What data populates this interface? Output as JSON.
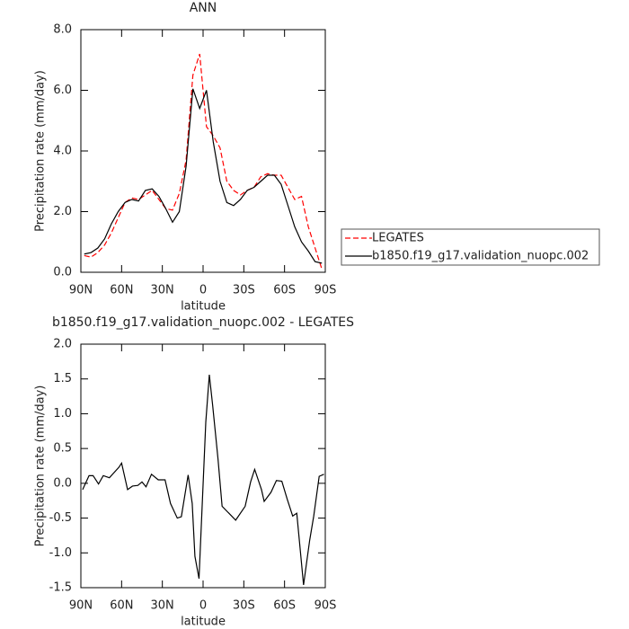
{
  "chart_data": [
    {
      "type": "line",
      "title": "ANN",
      "xlabel": "latitude",
      "ylabel": "Precipitation rate (mm/day)",
      "x": [
        87.5,
        82.5,
        77.5,
        72.5,
        67.5,
        62.5,
        57.5,
        52.5,
        47.5,
        42.5,
        37.5,
        32.5,
        27.5,
        22.5,
        17.5,
        12.5,
        7.5,
        2.5,
        -2.5,
        -7.5,
        -12.5,
        -17.5,
        -22.5,
        -27.5,
        -32.5,
        -37.5,
        -42.5,
        -47.5,
        -52.5,
        -57.5,
        -62.5,
        -67.5,
        -72.5,
        -77.5,
        -82.5,
        -87.5
      ],
      "series": [
        {
          "name": "LEGATES",
          "color": "#ff0000",
          "linestyle": "dashed",
          "values": [
            0.55,
            0.5,
            0.65,
            0.9,
            1.3,
            1.8,
            2.3,
            2.45,
            2.4,
            2.55,
            2.7,
            2.4,
            2.1,
            2.05,
            2.6,
            3.7,
            6.5,
            7.2,
            4.8,
            4.5,
            4.1,
            3.0,
            2.7,
            2.55,
            2.7,
            2.8,
            3.15,
            3.25,
            3.2,
            3.2,
            2.8,
            2.4,
            2.5,
            1.5,
            0.8,
            0.1
          ]
        },
        {
          "name": "b1850.f19_g17.validation_nuopc.002",
          "color": "#000000",
          "linestyle": "solid",
          "values": [
            0.6,
            0.65,
            0.8,
            1.1,
            1.6,
            2.0,
            2.3,
            2.4,
            2.35,
            2.7,
            2.75,
            2.5,
            2.1,
            1.65,
            2.0,
            3.5,
            6.05,
            5.4,
            6.0,
            4.3,
            3.0,
            2.3,
            2.2,
            2.4,
            2.7,
            2.8,
            3.0,
            3.2,
            3.2,
            2.9,
            2.2,
            1.5,
            1.0,
            0.7,
            0.35,
            0.3
          ]
        }
      ],
      "xlim": [
        90,
        -90
      ],
      "xticks": [
        {
          "value": 90,
          "label": "90N"
        },
        {
          "value": 60,
          "label": "60N"
        },
        {
          "value": 30,
          "label": "30N"
        },
        0,
        {
          "value": -30,
          "label": "30S"
        },
        {
          "value": -60,
          "label": "60S"
        },
        {
          "value": -90,
          "label": "90S"
        }
      ],
      "ylim": [
        0,
        8
      ],
      "yticks": [
        {
          "value": 0,
          "label": "0.0"
        },
        {
          "value": 2,
          "label": "2.0"
        },
        {
          "value": 4,
          "label": "4.0"
        },
        {
          "value": 6,
          "label": "6.0"
        },
        {
          "value": 8,
          "label": "8.0"
        }
      ],
      "legend": "right"
    },
    {
      "type": "line",
      "title": "b1850.f19_g17.validation_nuopc.002 - LEGATES",
      "xlabel": "latitude",
      "ylabel": "Precipitation rate (mm/day)",
      "x": [
        88.7,
        84,
        81,
        77,
        73.5,
        69,
        62,
        60,
        55.6,
        52,
        48,
        45,
        42,
        38,
        33,
        28,
        24,
        19,
        16,
        11,
        8,
        6,
        3,
        -2,
        -4.6,
        -7,
        -11,
        -14,
        -24,
        -31,
        -35,
        -38,
        -43,
        -45,
        -50,
        -54,
        -58,
        -62,
        -66,
        -69,
        -74,
        -78.5,
        -81.5,
        -85.5,
        -89
      ],
      "series": [
        {
          "color": "#000000",
          "linestyle": "solid",
          "values": [
            -0.09,
            0.11,
            0.11,
            -0.01,
            0.11,
            0.08,
            0.23,
            0.29,
            -0.09,
            -0.04,
            -0.03,
            0.02,
            -0.05,
            0.13,
            0.05,
            0.05,
            -0.29,
            -0.5,
            -0.48,
            0.12,
            -0.29,
            -1.05,
            -1.37,
            0.88,
            1.56,
            1.13,
            0.35,
            -0.33,
            -0.53,
            -0.33,
            0.02,
            0.2,
            -0.09,
            -0.26,
            -0.13,
            0.04,
            0.03,
            -0.23,
            -0.47,
            -0.43,
            -1.46,
            -0.82,
            -0.47,
            0.1,
            0.13
          ]
        }
      ],
      "xlim": [
        90,
        -90
      ],
      "xticks": [
        {
          "value": 90,
          "label": "90N"
        },
        {
          "value": 60,
          "label": "60N"
        },
        {
          "value": 30,
          "label": "30N"
        },
        0,
        {
          "value": -30,
          "label": "30S"
        },
        {
          "value": -60,
          "label": "60S"
        },
        {
          "value": -90,
          "label": "90S"
        }
      ],
      "ylim": [
        -1.5,
        2
      ],
      "yticks": [
        -1.5,
        {
          "value": -1,
          "label": "-1.0"
        },
        -0.5,
        {
          "value": 0,
          "label": "0.0"
        },
        0.5,
        {
          "value": 1,
          "label": "1.0"
        },
        1.5,
        {
          "value": 2,
          "label": "2.0"
        }
      ]
    }
  ]
}
